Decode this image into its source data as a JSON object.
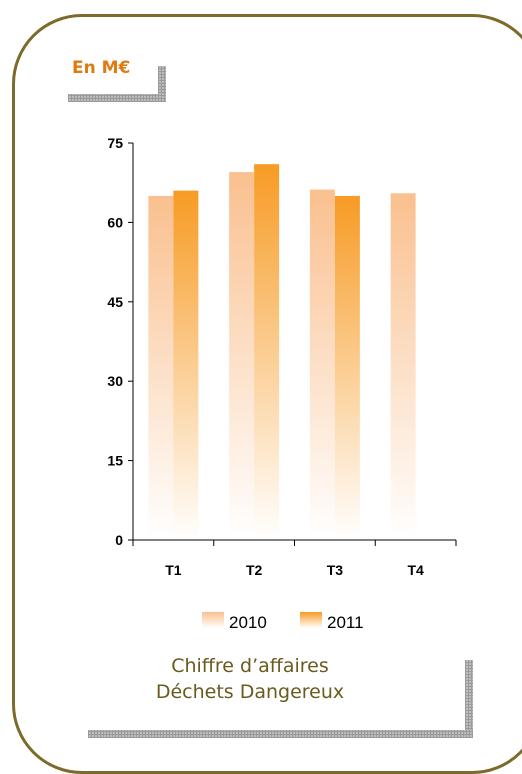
{
  "unit_label": "En M€",
  "caption": {
    "line1": "Chiffre d’affaires",
    "line2": "Déchets Dangereux"
  },
  "colors": {
    "border": "#7c6b2b",
    "series_2010": "#fac08f",
    "series_2011": "#f79b24",
    "caption_text": "#6a5a1e",
    "unit_text": "#e07b10"
  },
  "chart_data": {
    "type": "bar",
    "categories": [
      "T1",
      "T2",
      "T3",
      "T4"
    ],
    "series": [
      {
        "name": "2010",
        "values": [
          65,
          69.5,
          66.2,
          65.5
        ]
      },
      {
        "name": "2011",
        "values": [
          66,
          71,
          65,
          null
        ]
      }
    ],
    "ylim": [
      0,
      75
    ],
    "yticks": [
      0,
      15,
      30,
      45,
      60,
      75
    ],
    "grid": false,
    "legend_position": "bottom"
  }
}
